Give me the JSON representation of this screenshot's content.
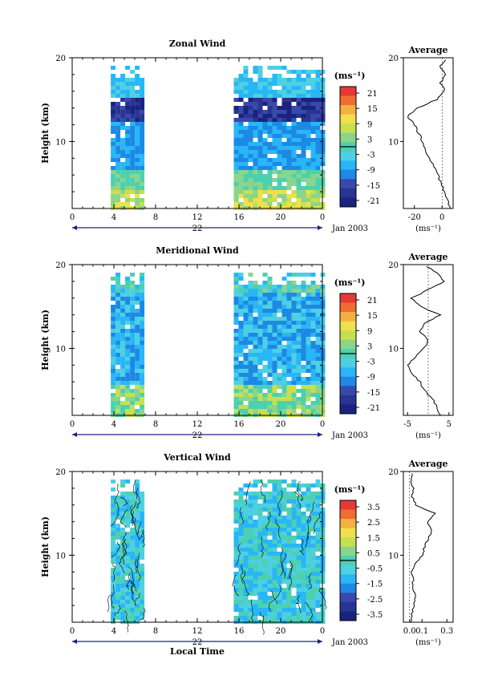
{
  "xlabel": "Local Time",
  "date_label": "Jan 2003",
  "avg_title": "Average",
  "unit_label": "(ms⁻¹)",
  "ylabel": "Height (km)",
  "ticks_x": [
    "0",
    "4",
    "8",
    "12",
    "16",
    "20",
    "0"
  ],
  "ticks_y": [
    "20",
    "10"
  ],
  "colorscale": [
    "#1a237e",
    "#283593",
    "#3949ab",
    "#1e88e5",
    "#29b6f6",
    "#4dd0e1",
    "#4dd0b0",
    "#8bd58a",
    "#c6e04f",
    "#f0e04a",
    "#f5b042",
    "#ef6c33",
    "#e53935"
  ],
  "chart_data": [
    {
      "type": "heatmap",
      "title": "Zonal Wind",
      "xlabel": "",
      "ylabel": "Height (km)",
      "xlim": [
        0,
        24
      ],
      "ylim": [
        2,
        20
      ],
      "date_tick": "22",
      "colorbar_ticks": [
        "21",
        "15",
        "9",
        "3",
        "-3",
        "-9",
        "-15",
        "-21"
      ],
      "observation_windows_h": [
        [
          3.7,
          7.0
        ],
        [
          15.5,
          24
        ]
      ],
      "average": {
        "title": "Average",
        "xlabel": "(ms⁻¹)",
        "xticks": [
          "-20",
          "0"
        ],
        "xlim": [
          -28,
          8
        ],
        "profile": [
          [
            6,
            2
          ],
          [
            4,
            3
          ],
          [
            2,
            4
          ],
          [
            -1,
            5
          ],
          [
            -3,
            6
          ],
          [
            -6,
            7
          ],
          [
            -9,
            8
          ],
          [
            -12,
            9
          ],
          [
            -14,
            10
          ],
          [
            -17,
            11
          ],
          [
            -20,
            12
          ],
          [
            -25,
            13
          ],
          [
            -18,
            14
          ],
          [
            -4,
            15
          ],
          [
            2,
            16
          ],
          [
            -1,
            17
          ],
          [
            3,
            18
          ],
          [
            -2,
            19
          ],
          [
            4,
            20
          ]
        ]
      }
    },
    {
      "type": "heatmap",
      "title": "Meridional Wind",
      "xlabel": "",
      "ylabel": "Height (km)",
      "xlim": [
        0,
        24
      ],
      "ylim": [
        2,
        20
      ],
      "date_tick": "22",
      "colorbar_ticks": [
        "21",
        "15",
        "9",
        "3",
        "-3",
        "-9",
        "-15",
        "-21"
      ],
      "observation_windows_h": [
        [
          3.7,
          7.0
        ],
        [
          15.5,
          24
        ]
      ],
      "average": {
        "title": "Average",
        "xlabel": "(ms⁻¹)",
        "xticks": [
          "-5",
          "5"
        ],
        "xlim": [
          -6,
          6
        ],
        "profile": [
          [
            3,
            2
          ],
          [
            2,
            3
          ],
          [
            1,
            4
          ],
          [
            -1,
            5
          ],
          [
            -2,
            6
          ],
          [
            -4,
            7
          ],
          [
            -5,
            8
          ],
          [
            -3,
            9
          ],
          [
            -1,
            10
          ],
          [
            0,
            11
          ],
          [
            -2,
            12
          ],
          [
            -1,
            13
          ],
          [
            3,
            14
          ],
          [
            -2,
            15
          ],
          [
            -4,
            16
          ],
          [
            0,
            17
          ],
          [
            4,
            18
          ],
          [
            2,
            19
          ],
          [
            -1,
            20
          ]
        ]
      }
    },
    {
      "type": "heatmap",
      "title": "Vertical Wind",
      "xlabel": "Local Time",
      "ylabel": "Height (km)",
      "xlim": [
        0,
        24
      ],
      "ylim": [
        2,
        20
      ],
      "date_tick": "22",
      "colorbar_ticks": [
        "3.5",
        "2.5",
        "1.5",
        "0.5",
        "-0.5",
        "-1.5",
        "-2.5",
        "-3.5"
      ],
      "observation_windows_h": [
        [
          3.7,
          7.0
        ],
        [
          15.5,
          24
        ]
      ],
      "average": {
        "title": "Average",
        "xlabel": "(ms⁻¹)",
        "xticks": [
          "0.0",
          "0.1",
          "0.3"
        ],
        "xlim": [
          -0.05,
          0.35
        ],
        "profile": [
          [
            0.01,
            2
          ],
          [
            0.02,
            3
          ],
          [
            0.03,
            4
          ],
          [
            0.05,
            5
          ],
          [
            0.02,
            6
          ],
          [
            0.03,
            7
          ],
          [
            0.01,
            8
          ],
          [
            0.05,
            9
          ],
          [
            0.1,
            10
          ],
          [
            0.12,
            11
          ],
          [
            0.15,
            12
          ],
          [
            0.18,
            13
          ],
          [
            0.14,
            14
          ],
          [
            0.2,
            15
          ],
          [
            0.05,
            16
          ],
          [
            0.02,
            17
          ],
          [
            0.03,
            18
          ],
          [
            0.01,
            19
          ],
          [
            0.02,
            20
          ]
        ]
      }
    }
  ]
}
